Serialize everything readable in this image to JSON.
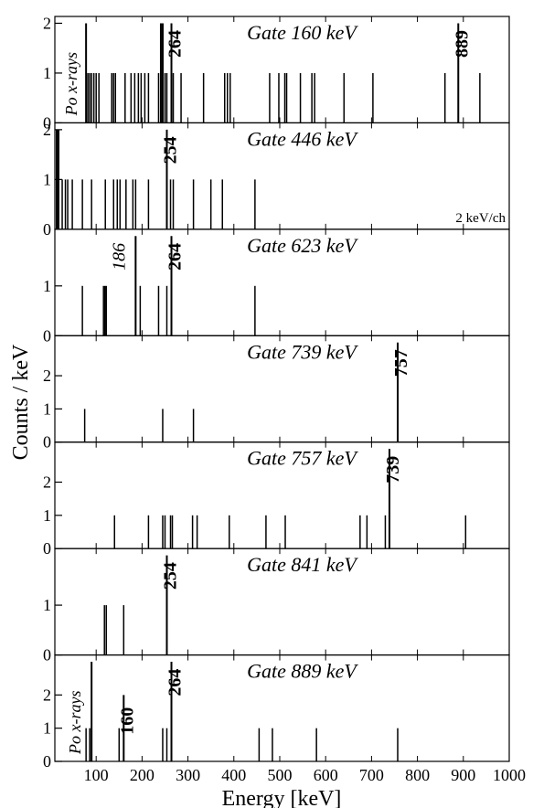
{
  "chart_data": {
    "type": "bar",
    "xlabel": "Energy [keV]",
    "ylabel": "Counts / keV",
    "xlim": [
      10,
      1000
    ],
    "xticks": [
      100,
      200,
      300,
      400,
      500,
      600,
      700,
      800,
      900,
      1000
    ],
    "grid": false,
    "panels": [
      {
        "gate": "Gate 160 keV",
        "ylim": [
          0,
          2.1
        ],
        "yticks": [
          0,
          1,
          2
        ],
        "bars": [
          {
            "x": 78,
            "y": 2
          },
          {
            "x": 82,
            "y": 1
          },
          {
            "x": 86,
            "y": 1
          },
          {
            "x": 90,
            "y": 1
          },
          {
            "x": 95,
            "y": 1
          },
          {
            "x": 100,
            "y": 1
          },
          {
            "x": 106,
            "y": 1
          },
          {
            "x": 134,
            "y": 1
          },
          {
            "x": 138,
            "y": 1
          },
          {
            "x": 142,
            "y": 1
          },
          {
            "x": 163,
            "y": 1
          },
          {
            "x": 176,
            "y": 1
          },
          {
            "x": 184,
            "y": 1
          },
          {
            "x": 192,
            "y": 1
          },
          {
            "x": 198,
            "y": 1
          },
          {
            "x": 206,
            "y": 1
          },
          {
            "x": 214,
            "y": 1
          },
          {
            "x": 236,
            "y": 1
          },
          {
            "x": 241,
            "y": 2
          },
          {
            "x": 245,
            "y": 2
          },
          {
            "x": 250,
            "y": 1
          },
          {
            "x": 254,
            "y": 1
          },
          {
            "x": 264,
            "y": 2
          },
          {
            "x": 268,
            "y": 1
          },
          {
            "x": 285,
            "y": 1
          },
          {
            "x": 334,
            "y": 1
          },
          {
            "x": 380,
            "y": 1
          },
          {
            "x": 386,
            "y": 1
          },
          {
            "x": 392,
            "y": 1
          },
          {
            "x": 478,
            "y": 1
          },
          {
            "x": 498,
            "y": 1
          },
          {
            "x": 511,
            "y": 1
          },
          {
            "x": 515,
            "y": 1
          },
          {
            "x": 545,
            "y": 1
          },
          {
            "x": 570,
            "y": 1
          },
          {
            "x": 576,
            "y": 1
          },
          {
            "x": 640,
            "y": 1
          },
          {
            "x": 703,
            "y": 1
          },
          {
            "x": 860,
            "y": 1
          },
          {
            "x": 889,
            "y": 2
          },
          {
            "x": 936,
            "y": 1
          }
        ],
        "peak_labels": [
          {
            "text": "264",
            "x": 264,
            "style": "bold"
          },
          {
            "text": "889",
            "x": 889,
            "style": "bold"
          },
          {
            "text": "Po x-rays",
            "x": 78,
            "style": "xray"
          }
        ]
      },
      {
        "gate": "Gate 446 keV",
        "ylim": [
          0,
          2.1
        ],
        "yticks": [
          0,
          1,
          2
        ],
        "note": "2 keV/ch",
        "bars": [
          {
            "x": 14,
            "y": 2
          },
          {
            "x": 18,
            "y": 2
          },
          {
            "x": 26,
            "y": 1
          },
          {
            "x": 33,
            "y": 1
          },
          {
            "x": 38,
            "y": 1
          },
          {
            "x": 48,
            "y": 1
          },
          {
            "x": 70,
            "y": 1
          },
          {
            "x": 90,
            "y": 1
          },
          {
            "x": 120,
            "y": 1
          },
          {
            "x": 138,
            "y": 1
          },
          {
            "x": 146,
            "y": 1
          },
          {
            "x": 152,
            "y": 1
          },
          {
            "x": 165,
            "y": 1
          },
          {
            "x": 180,
            "y": 1
          },
          {
            "x": 186,
            "y": 1
          },
          {
            "x": 214,
            "y": 1
          },
          {
            "x": 254,
            "y": 2
          },
          {
            "x": 262,
            "y": 1
          },
          {
            "x": 268,
            "y": 1
          },
          {
            "x": 312,
            "y": 1
          },
          {
            "x": 350,
            "y": 1
          },
          {
            "x": 375,
            "y": 1
          },
          {
            "x": 446,
            "y": 1
          }
        ],
        "peak_labels": [
          {
            "text": "254",
            "x": 254,
            "style": "bold"
          }
        ]
      },
      {
        "gate": "Gate 623 keV",
        "ylim": [
          0,
          2.1
        ],
        "yticks": [
          0,
          1
        ],
        "bars": [
          {
            "x": 70,
            "y": 1
          },
          {
            "x": 116,
            "y": 1
          },
          {
            "x": 119,
            "y": 1
          },
          {
            "x": 122,
            "y": 1
          },
          {
            "x": 186,
            "y": 2
          },
          {
            "x": 196,
            "y": 1
          },
          {
            "x": 236,
            "y": 1
          },
          {
            "x": 254,
            "y": 1
          },
          {
            "x": 264,
            "y": 2
          },
          {
            "x": 446,
            "y": 1
          }
        ],
        "peak_labels": [
          {
            "text": "186",
            "x": 186,
            "style": "italic"
          },
          {
            "text": "264",
            "x": 264,
            "style": "bold"
          }
        ]
      },
      {
        "gate": "Gate 739 keV",
        "ylim": [
          0,
          3.15
        ],
        "yticks": [
          0,
          1,
          2
        ],
        "bars": [
          {
            "x": 75,
            "y": 1
          },
          {
            "x": 245,
            "y": 1
          },
          {
            "x": 312,
            "y": 1
          },
          {
            "x": 757,
            "y": 3
          }
        ],
        "peak_labels": [
          {
            "text": "757",
            "x": 757,
            "style": "bold"
          }
        ]
      },
      {
        "gate": "Gate 757 keV",
        "ylim": [
          0,
          3.15
        ],
        "yticks": [
          0,
          1,
          2
        ],
        "bars": [
          {
            "x": 140,
            "y": 1
          },
          {
            "x": 214,
            "y": 1
          },
          {
            "x": 245,
            "y": 1
          },
          {
            "x": 250,
            "y": 1
          },
          {
            "x": 262,
            "y": 1
          },
          {
            "x": 266,
            "y": 1
          },
          {
            "x": 310,
            "y": 1
          },
          {
            "x": 320,
            "y": 1
          },
          {
            "x": 390,
            "y": 1
          },
          {
            "x": 470,
            "y": 1
          },
          {
            "x": 512,
            "y": 1
          },
          {
            "x": 675,
            "y": 1
          },
          {
            "x": 690,
            "y": 1
          },
          {
            "x": 730,
            "y": 1
          },
          {
            "x": 739,
            "y": 3
          },
          {
            "x": 905,
            "y": 1
          }
        ],
        "peak_labels": [
          {
            "text": "739",
            "x": 739,
            "style": "bold"
          }
        ]
      },
      {
        "gate": "Gate 841 keV",
        "ylim": [
          0,
          2.1
        ],
        "yticks": [
          0,
          1
        ],
        "bars": [
          {
            "x": 118,
            "y": 1
          },
          {
            "x": 122,
            "y": 1
          },
          {
            "x": 160,
            "y": 1
          },
          {
            "x": 254,
            "y": 2
          }
        ],
        "peak_labels": [
          {
            "text": "254",
            "x": 254,
            "style": "bold"
          }
        ]
      },
      {
        "gate": "Gate 889 keV",
        "ylim": [
          0,
          3.15
        ],
        "yticks": [
          0,
          1,
          2
        ],
        "bars": [
          {
            "x": 78,
            "y": 1
          },
          {
            "x": 86,
            "y": 1
          },
          {
            "x": 90,
            "y": 3
          },
          {
            "x": 150,
            "y": 1
          },
          {
            "x": 160,
            "y": 2
          },
          {
            "x": 245,
            "y": 1
          },
          {
            "x": 254,
            "y": 1
          },
          {
            "x": 264,
            "y": 3
          },
          {
            "x": 455,
            "y": 1
          },
          {
            "x": 484,
            "y": 1
          },
          {
            "x": 580,
            "y": 1
          },
          {
            "x": 757,
            "y": 1
          }
        ],
        "peak_labels": [
          {
            "text": "160",
            "x": 160,
            "style": "bold"
          },
          {
            "text": "264",
            "x": 264,
            "style": "bold"
          },
          {
            "text": "Po x-rays",
            "x": 86,
            "style": "xray"
          }
        ]
      }
    ]
  }
}
